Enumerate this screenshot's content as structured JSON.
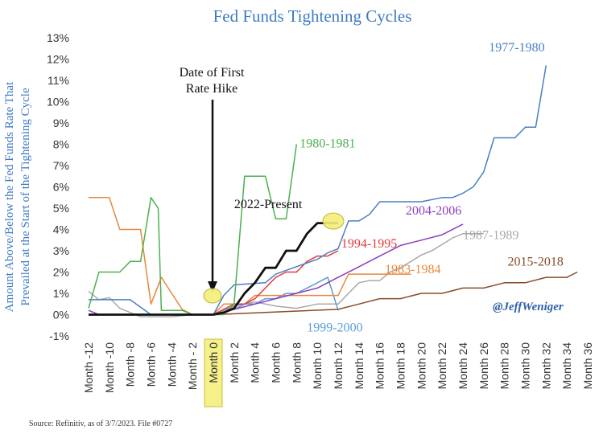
{
  "chart_data": {
    "type": "line",
    "title": "Fed Funds Tightening Cycles",
    "ylabel_line1": "Amount Above/Below the Fed Funds Rate That",
    "ylabel_line2": "Prevailed at the Start of the Tightening Cycle",
    "xlabel": "",
    "x_range": [
      -12,
      36
    ],
    "ylim": [
      -1,
      13
    ],
    "y_ticks": [
      -1,
      0,
      1,
      2,
      3,
      4,
      5,
      6,
      7,
      8,
      9,
      10,
      11,
      12,
      13
    ],
    "y_tick_labels": [
      "-1%",
      "0%",
      "1%",
      "2%",
      "3%",
      "4%",
      "5%",
      "6%",
      "7%",
      "8%",
      "9%",
      "10%",
      "11%",
      "12%",
      "13%"
    ],
    "x_ticks": [
      -12,
      -10,
      -8,
      -6,
      -4,
      -2,
      0,
      2,
      4,
      6,
      8,
      10,
      12,
      14,
      16,
      18,
      20,
      22,
      24,
      26,
      28,
      30,
      32,
      34,
      36
    ],
    "x_tick_labels": [
      "Month -12",
      "Month -10",
      "Month -8",
      "Month -6",
      "Month -4",
      "Month - 2",
      "Month 0",
      "Month 2",
      "Month 4",
      "Month 6",
      "Month 8",
      "Month 10",
      "Month 12",
      "Month 14",
      "Month 16",
      "Month 18",
      "Month 20",
      "Month 22",
      "Month 24",
      "Month 26",
      "Month 28",
      "Month 30",
      "Month 32",
      "Month 34",
      "Month 36"
    ],
    "highlight_tick": "Month 0",
    "grid": false,
    "series": [
      {
        "name": "1977-1980",
        "color": "#4a7fc1",
        "width": 1.5,
        "x": [
          -12,
          -8,
          -6,
          -2,
          0,
          1,
          2,
          5,
          6,
          10,
          11,
          12,
          13,
          14,
          15,
          16,
          17,
          20,
          22,
          23,
          24,
          25,
          26,
          27,
          28,
          29,
          30,
          31,
          32
        ],
        "y": [
          0.7,
          0.7,
          0,
          0,
          0,
          0.9,
          1.4,
          1.5,
          1.9,
          2.6,
          2.9,
          3.1,
          4.4,
          4.4,
          4.7,
          5.3,
          5.3,
          5.3,
          5.5,
          5.5,
          5.7,
          6.0,
          6.7,
          8.3,
          8.3,
          8.3,
          8.8,
          8.8,
          11.7
        ]
      },
      {
        "name": "1980-1981",
        "color": "#4cb050",
        "width": 1.5,
        "x": [
          -12,
          -11,
          -9,
          -8,
          -7,
          -6,
          -5.3,
          -5,
          -4,
          -3,
          -2,
          -1,
          0,
          1,
          2,
          3,
          4,
          5,
          6,
          7,
          8
        ],
        "y": [
          0.3,
          2,
          2,
          2.5,
          2.5,
          5.5,
          5,
          0.2,
          0.2,
          0.2,
          0,
          0,
          0,
          0,
          0.5,
          6.5,
          6.5,
          6.5,
          4.5,
          4.5,
          8
        ]
      },
      {
        "name": "2022-Present",
        "color": "#111111",
        "width": 2.8,
        "x": [
          -12,
          -4,
          0,
          1,
          2,
          3,
          4,
          5,
          6,
          7,
          8,
          9,
          10,
          11,
          12
        ],
        "y": [
          0,
          0,
          0,
          0.1,
          0.3,
          1.0,
          1.5,
          2.2,
          2.2,
          3.0,
          3.0,
          3.8,
          4.3,
          4.3,
          4.3
        ]
      },
      {
        "name": "1994-1995",
        "color": "#e03a3a",
        "width": 1.5,
        "x": [
          -12,
          0,
          1,
          2,
          3,
          4,
          5,
          6,
          7,
          8,
          9,
          10,
          11,
          12
        ],
        "y": [
          0,
          0,
          0.25,
          0.5,
          0.5,
          0.75,
          1.25,
          1.75,
          2.0,
          2.0,
          2.5,
          2.75,
          2.75,
          3.0
        ]
      },
      {
        "name": "2004-2006",
        "color": "#8b3fbf",
        "width": 1.5,
        "x": [
          -12,
          -11,
          -10,
          0,
          2,
          4,
          6,
          8,
          10,
          12,
          14,
          16,
          18,
          20,
          22,
          24
        ],
        "y": [
          0.2,
          0,
          0,
          0,
          0.25,
          0.5,
          0.75,
          1.0,
          1.25,
          1.75,
          2.25,
          2.75,
          3.25,
          3.5,
          3.75,
          4.25
        ]
      },
      {
        "name": "1987-1989",
        "color": "#a9a9a9",
        "width": 1.5,
        "x": [
          -12,
          -11,
          -10,
          -9,
          -7,
          -4,
          -2,
          0,
          2,
          4,
          6,
          8,
          10,
          12,
          13,
          14,
          15,
          16,
          17,
          18,
          19,
          20,
          21,
          22,
          23,
          24,
          25,
          26
        ],
        "y": [
          1.1,
          0.7,
          0.8,
          0.3,
          -0.1,
          -0.1,
          0,
          0,
          0.4,
          0.6,
          0.4,
          0.3,
          0.5,
          0.5,
          1.0,
          1.5,
          1.6,
          1.6,
          2.0,
          2.2,
          2.5,
          2.8,
          3.0,
          3.3,
          3.6,
          3.8,
          3.8,
          3.8
        ]
      },
      {
        "name": "1983-1984",
        "color": "#e8873a",
        "width": 1.5,
        "x": [
          -12,
          -10,
          -9,
          -7,
          -6,
          -5,
          -4,
          -3,
          -2,
          0,
          1,
          3,
          4,
          5,
          6,
          7,
          8,
          9,
          10,
          12,
          13,
          14,
          15,
          16,
          17,
          18,
          19
        ],
        "y": [
          5.5,
          5.5,
          4.0,
          4.0,
          0.5,
          1.75,
          1.0,
          0.25,
          0,
          0,
          0.5,
          0.5,
          0.9,
          0.9,
          0.9,
          0.9,
          0.9,
          0.9,
          0.9,
          0.9,
          1.9,
          1.9,
          1.9,
          1.9,
          1.9,
          1.9,
          1.9
        ]
      },
      {
        "name": "1999-2000",
        "color": "#5b9bd5",
        "width": 1.5,
        "x": [
          -12,
          0,
          1,
          2,
          3,
          4,
          5,
          6,
          7,
          8,
          9,
          10,
          11,
          12
        ],
        "y": [
          0,
          0,
          0.25,
          0.25,
          0.5,
          0.5,
          0.75,
          0.75,
          1.0,
          1.0,
          1.25,
          1.5,
          1.75,
          0.2
        ]
      },
      {
        "name": "2015-2018",
        "color": "#8b4a2b",
        "width": 1.5,
        "x": [
          -12,
          0,
          12,
          14,
          16,
          18,
          20,
          22,
          24,
          26,
          28,
          30,
          32,
          34,
          35
        ],
        "y": [
          0,
          0,
          0.25,
          0.5,
          0.75,
          0.75,
          1.0,
          1.0,
          1.25,
          1.25,
          1.5,
          1.5,
          1.75,
          1.75,
          2.0
        ]
      }
    ],
    "annotations": {
      "first_hike_line1": "Date of First",
      "first_hike_line2": "Rate Hike",
      "handle": "@JeffWeniger",
      "source": "Source: Refinitiv, as of 3/7/2023. File #0727"
    }
  }
}
